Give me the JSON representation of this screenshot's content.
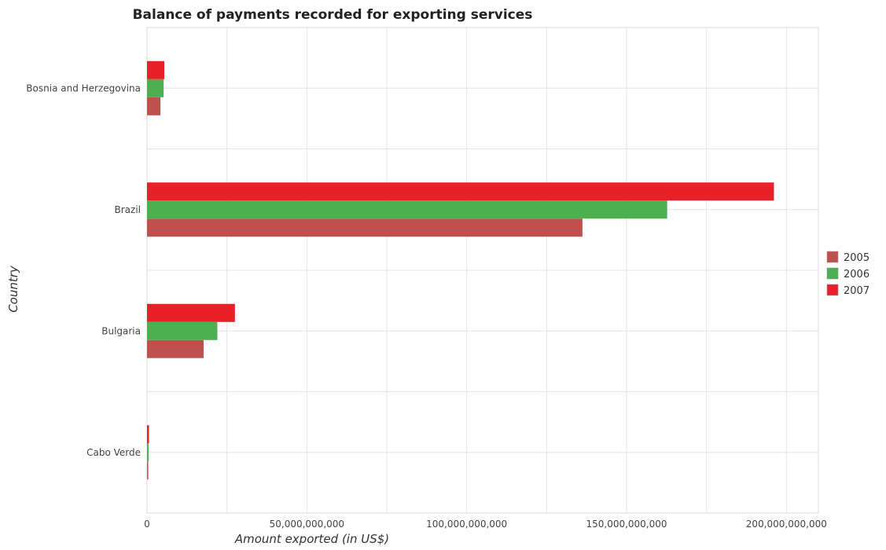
{
  "chart_data": {
    "type": "bar",
    "orientation": "horizontal",
    "title": "Balance of payments recorded for exporting services",
    "xlabel": "Amount exported (in US$)",
    "ylabel": "Country",
    "categories": [
      "Bosnia and Herzegovina",
      "Brazil",
      "Bulgaria",
      "Cabo Verde"
    ],
    "series": [
      {
        "name": "2005",
        "color": "#c0504d",
        "values": [
          4200000000,
          136200000000,
          17700000000,
          380000000
        ]
      },
      {
        "name": "2006",
        "color": "#4caf50",
        "values": [
          5200000000,
          162700000000,
          22000000000,
          520000000
        ]
      },
      {
        "name": "2007",
        "color": "#e8202a",
        "values": [
          5400000000,
          196100000000,
          27500000000,
          620000000
        ]
      }
    ],
    "xlim": [
      0,
      210000000000
    ],
    "xticks": [
      0,
      50000000000,
      100000000000,
      150000000000,
      200000000000
    ],
    "xtick_labels": [
      "0",
      "50,000,000,000",
      "100,000,000,000",
      "150,000,000,000",
      "200,000,000,000"
    ],
    "grid": true,
    "legend_position": "right"
  }
}
